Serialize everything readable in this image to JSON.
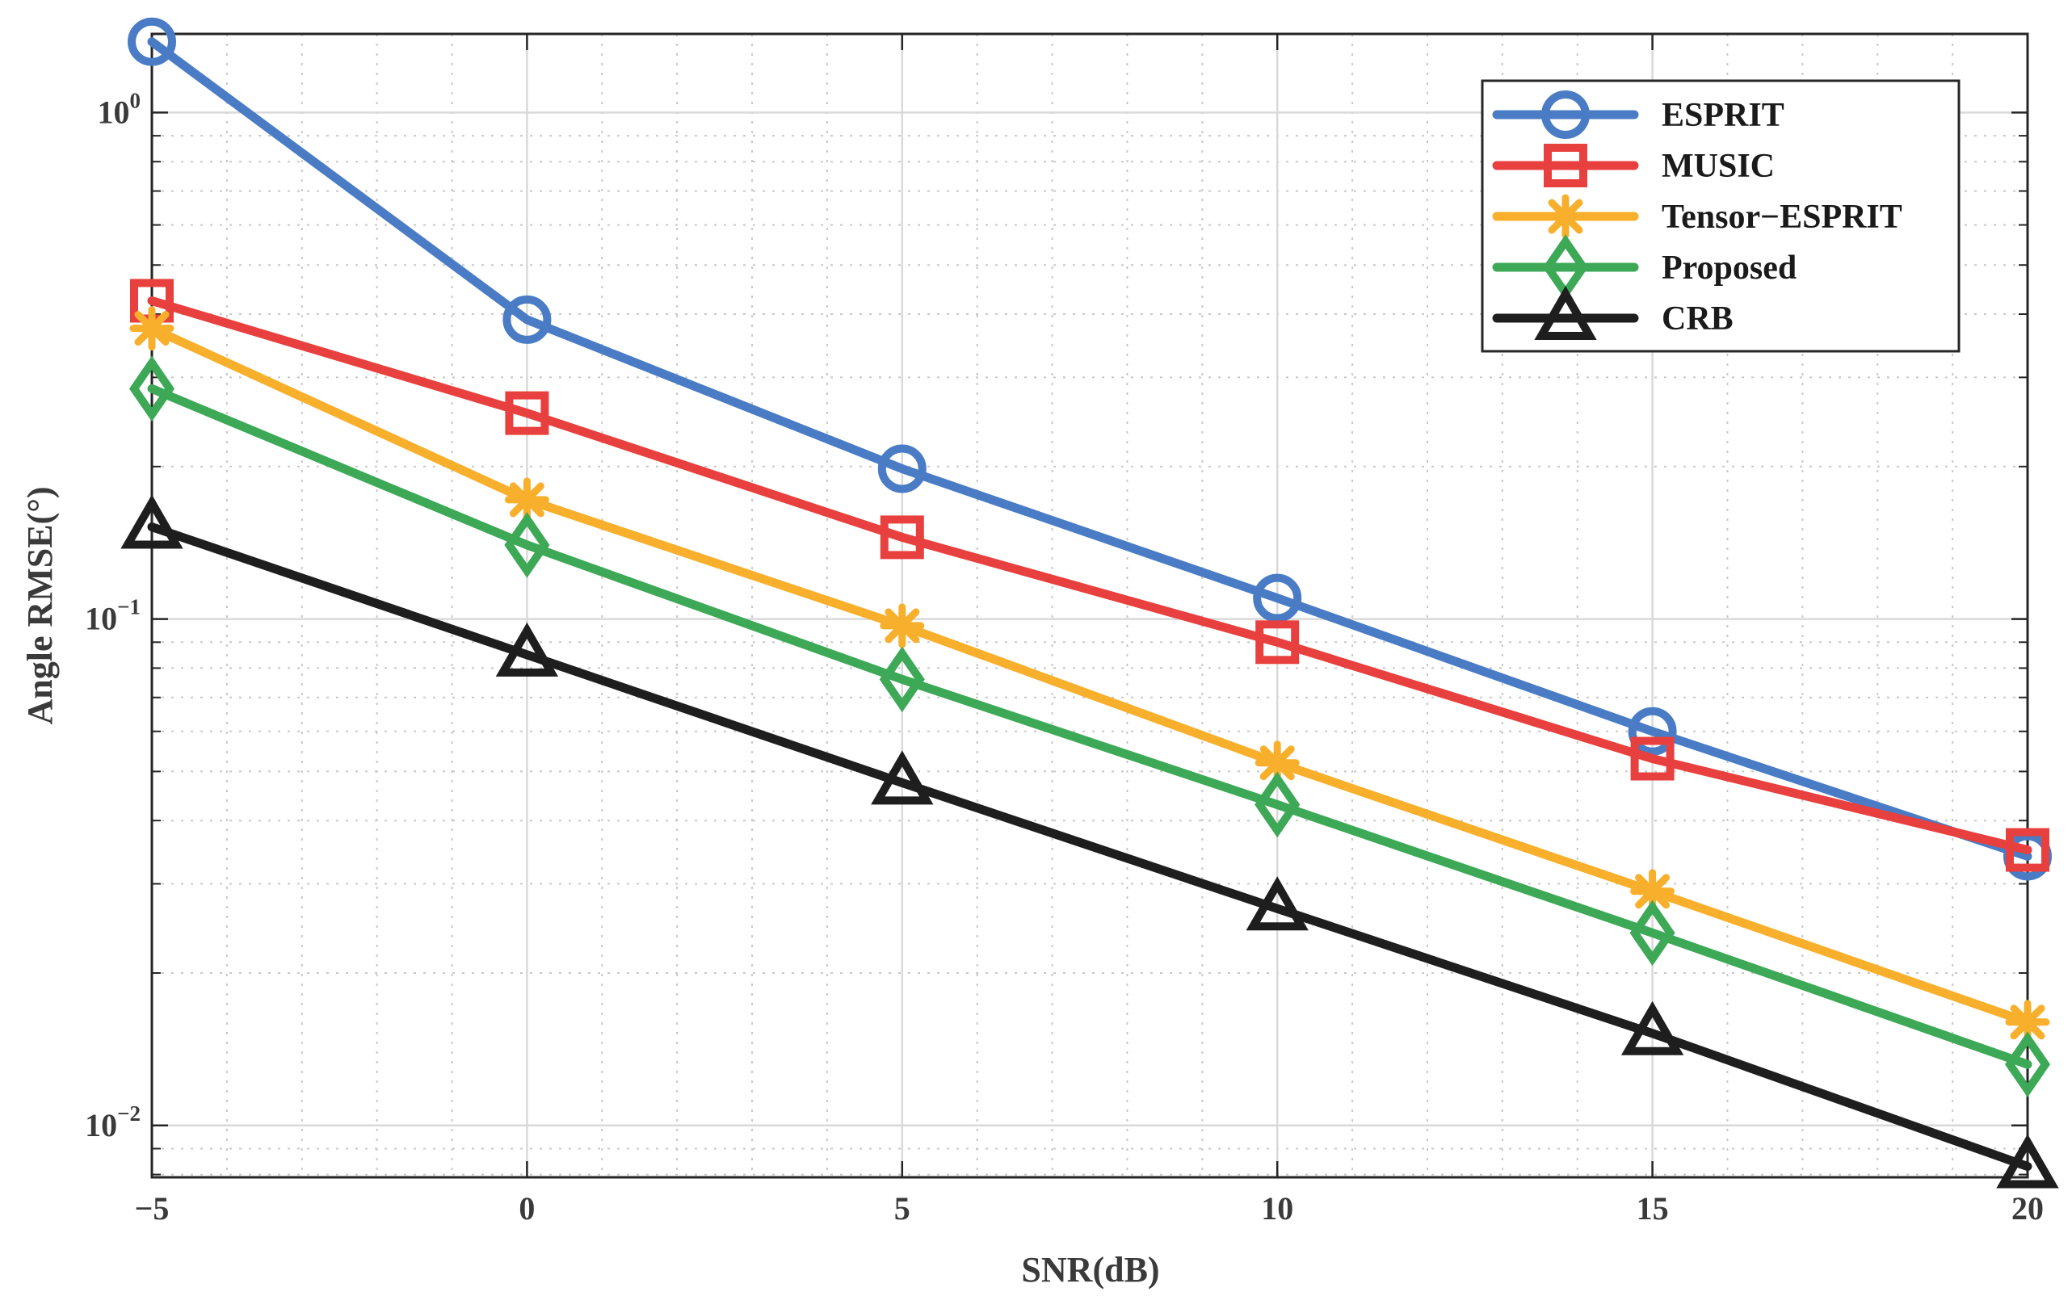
{
  "chart_data": {
    "type": "line",
    "title": "",
    "xlabel": "SNR(dB)",
    "ylabel": "Angle RMSE(°)",
    "yscale": "log",
    "x": [
      -5,
      0,
      5,
      10,
      15,
      20
    ],
    "xlim": [
      -5,
      20
    ],
    "ylim": [
      0.0079,
      1.43
    ],
    "xticks": [
      -5,
      0,
      5,
      10,
      15,
      20
    ],
    "xtick_labels": [
      "−5",
      "0",
      "5",
      "10",
      "15",
      "20"
    ],
    "yticks": [
      {
        "value": 1,
        "base": "10",
        "exp": "0"
      },
      {
        "value": 0.1,
        "base": "10",
        "exp": "−1"
      },
      {
        "value": 0.01,
        "base": "10",
        "exp": "−2"
      }
    ],
    "grid": true,
    "legend_position": "top-right",
    "series": [
      {
        "name": "ESPRIT",
        "color": "#4A7CC5",
        "marker": "circle",
        "values": [
          1.38,
          0.39,
          0.198,
          0.11,
          0.06,
          0.034
        ]
      },
      {
        "name": "MUSIC",
        "color": "#E8403E",
        "marker": "square",
        "values": [
          0.425,
          0.255,
          0.145,
          0.09,
          0.053,
          0.035
        ]
      },
      {
        "name": "Tensor−ESPRIT",
        "color": "#F8B02C",
        "marker": "asterisk",
        "values": [
          0.375,
          0.172,
          0.097,
          0.052,
          0.029,
          0.016
        ]
      },
      {
        "name": "Proposed",
        "color": "#3DA957",
        "marker": "diamond",
        "values": [
          0.285,
          0.14,
          0.076,
          0.043,
          0.024,
          0.0132
        ]
      },
      {
        "name": "CRB",
        "color": "#1E1E1E",
        "marker": "triangle",
        "values": [
          0.152,
          0.085,
          0.0475,
          0.0268,
          0.0152,
          0.0083
        ]
      }
    ]
  }
}
